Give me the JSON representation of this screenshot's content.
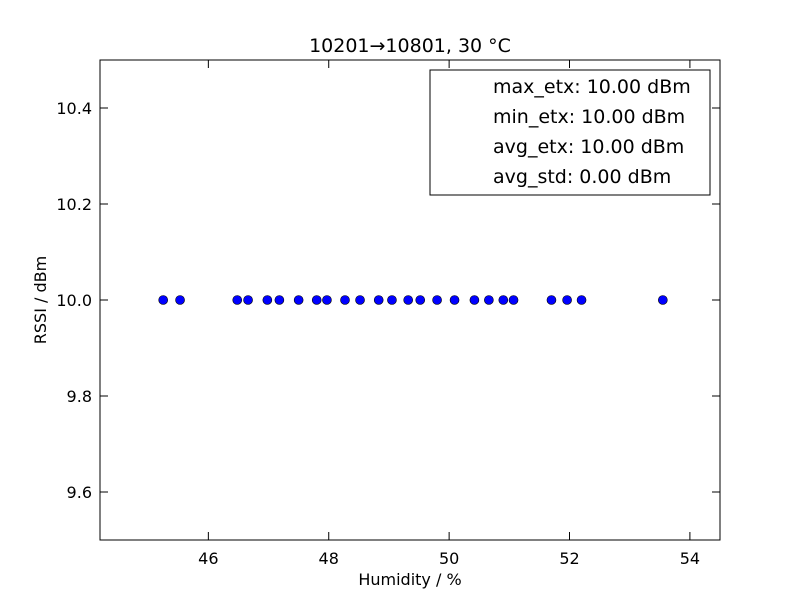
{
  "chart_data": {
    "type": "scatter",
    "title": "10201→10801, 30 °C",
    "xlabel": "Humidity / %",
    "ylabel": "RSSI / dBm",
    "xlim": [
      44.2,
      54.5
    ],
    "ylim": [
      9.5,
      10.5
    ],
    "grid": false,
    "legend_position": "top-right",
    "legend": [
      "max_etx: 10.00 dBm",
      "min_etx: 10.00 dBm",
      "avg_etx: 10.00 dBm",
      "avg_std: 0.00 dBm"
    ],
    "marker_color": "#0000ff",
    "x_ticks": [
      {
        "value": 46,
        "label": "46"
      },
      {
        "value": 48,
        "label": "48"
      },
      {
        "value": 50,
        "label": "50"
      },
      {
        "value": 52,
        "label": "52"
      },
      {
        "value": 54,
        "label": "54"
      }
    ],
    "y_ticks": [
      {
        "value": 9.6,
        "label": "9.6"
      },
      {
        "value": 9.8,
        "label": "9.8"
      },
      {
        "value": 10.0,
        "label": "10.0"
      },
      {
        "value": 10.2,
        "label": "10.2"
      },
      {
        "value": 10.4,
        "label": "10.4"
      }
    ],
    "points": [
      {
        "x": 45.25,
        "y": 10.0
      },
      {
        "x": 45.53,
        "y": 10.0
      },
      {
        "x": 46.48,
        "y": 10.0
      },
      {
        "x": 46.66,
        "y": 10.0
      },
      {
        "x": 46.98,
        "y": 10.0
      },
      {
        "x": 47.18,
        "y": 10.0
      },
      {
        "x": 47.5,
        "y": 10.0
      },
      {
        "x": 47.8,
        "y": 10.0
      },
      {
        "x": 47.97,
        "y": 10.0
      },
      {
        "x": 48.27,
        "y": 10.0
      },
      {
        "x": 48.52,
        "y": 10.0
      },
      {
        "x": 48.83,
        "y": 10.0
      },
      {
        "x": 49.05,
        "y": 10.0
      },
      {
        "x": 49.32,
        "y": 10.0
      },
      {
        "x": 49.52,
        "y": 10.0
      },
      {
        "x": 49.8,
        "y": 10.0
      },
      {
        "x": 50.09,
        "y": 10.0
      },
      {
        "x": 50.42,
        "y": 10.0
      },
      {
        "x": 50.66,
        "y": 10.0
      },
      {
        "x": 50.9,
        "y": 10.0
      },
      {
        "x": 51.07,
        "y": 10.0
      },
      {
        "x": 51.7,
        "y": 10.0
      },
      {
        "x": 51.96,
        "y": 10.0
      },
      {
        "x": 52.2,
        "y": 10.0
      },
      {
        "x": 53.55,
        "y": 10.0
      }
    ]
  }
}
